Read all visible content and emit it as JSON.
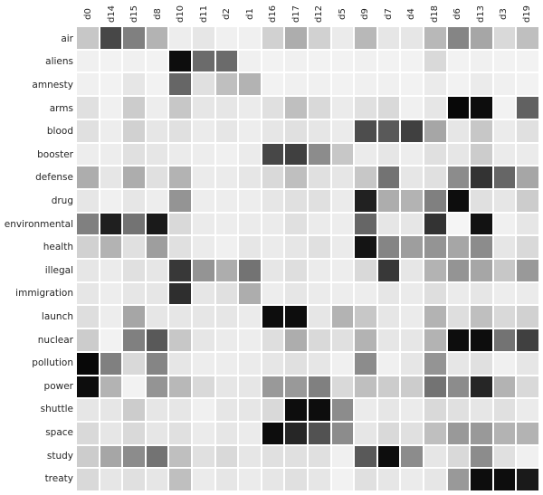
{
  "chart_data": {
    "type": "heatmap",
    "title": "",
    "xlabel": "",
    "ylabel": "",
    "legend": "none",
    "colormap": "white-to-black (Greys)",
    "value_scale": "0 = white/empty, 1 = black/max",
    "grid": "thin white gaps between cells",
    "x_categories": [
      "d0",
      "d14",
      "d15",
      "d8",
      "d10",
      "d11",
      "d2",
      "d1",
      "d16",
      "d17",
      "d12",
      "d5",
      "d9",
      "d7",
      "d4",
      "d18",
      "d6",
      "d13",
      "d3",
      "d19"
    ],
    "y_categories": [
      "air",
      "aliens",
      "amnesty",
      "arms",
      "blood",
      "booster",
      "defense",
      "drug",
      "environmental",
      "health",
      "illegal",
      "immigration",
      "launch",
      "nuclear",
      "pollution",
      "power",
      "shuttle",
      "space",
      "study",
      "treaty"
    ],
    "values": [
      [
        0.22,
        0.72,
        0.5,
        0.3,
        0.07,
        0.1,
        0.06,
        0.06,
        0.18,
        0.32,
        0.18,
        0.08,
        0.28,
        0.1,
        0.1,
        0.28,
        0.48,
        0.35,
        0.15,
        0.25
      ],
      [
        0.06,
        0.05,
        0.06,
        0.05,
        0.95,
        0.58,
        0.58,
        0.06,
        0.05,
        0.06,
        0.05,
        0.05,
        0.06,
        0.05,
        0.05,
        0.15,
        0.05,
        0.06,
        0.05,
        0.05
      ],
      [
        0.06,
        0.05,
        0.1,
        0.05,
        0.6,
        0.12,
        0.25,
        0.3,
        0.05,
        0.06,
        0.06,
        0.05,
        0.06,
        0.06,
        0.05,
        0.08,
        0.05,
        0.08,
        0.06,
        0.05
      ],
      [
        0.12,
        0.06,
        0.2,
        0.07,
        0.22,
        0.1,
        0.1,
        0.08,
        0.12,
        0.25,
        0.15,
        0.08,
        0.12,
        0.15,
        0.06,
        0.1,
        0.97,
        0.95,
        0.05,
        0.62
      ],
      [
        0.12,
        0.07,
        0.18,
        0.1,
        0.12,
        0.08,
        0.1,
        0.07,
        0.1,
        0.12,
        0.1,
        0.08,
        0.7,
        0.65,
        0.75,
        0.35,
        0.1,
        0.22,
        0.08,
        0.12
      ],
      [
        0.07,
        0.07,
        0.12,
        0.1,
        0.08,
        0.07,
        0.06,
        0.08,
        0.72,
        0.75,
        0.45,
        0.22,
        0.08,
        0.1,
        0.07,
        0.12,
        0.1,
        0.2,
        0.08,
        0.08
      ],
      [
        0.32,
        0.1,
        0.32,
        0.12,
        0.3,
        0.08,
        0.08,
        0.1,
        0.15,
        0.25,
        0.12,
        0.1,
        0.22,
        0.55,
        0.1,
        0.12,
        0.45,
        0.8,
        0.6,
        0.35
      ],
      [
        0.1,
        0.06,
        0.1,
        0.07,
        0.42,
        0.07,
        0.07,
        0.07,
        0.1,
        0.12,
        0.12,
        0.08,
        0.87,
        0.32,
        0.3,
        0.5,
        0.95,
        0.12,
        0.1,
        0.2
      ],
      [
        0.5,
        0.88,
        0.55,
        0.9,
        0.15,
        0.08,
        0.07,
        0.08,
        0.08,
        0.12,
        0.08,
        0.07,
        0.6,
        0.1,
        0.1,
        0.8,
        0.04,
        0.93,
        0.06,
        0.1
      ],
      [
        0.18,
        0.3,
        0.12,
        0.38,
        0.12,
        0.08,
        0.06,
        0.1,
        0.08,
        0.1,
        0.12,
        0.08,
        0.92,
        0.48,
        0.38,
        0.42,
        0.35,
        0.45,
        0.1,
        0.15
      ],
      [
        0.1,
        0.08,
        0.12,
        0.1,
        0.78,
        0.42,
        0.32,
        0.55,
        0.1,
        0.13,
        0.08,
        0.07,
        0.15,
        0.78,
        0.1,
        0.3,
        0.42,
        0.35,
        0.22,
        0.4
      ],
      [
        0.1,
        0.07,
        0.1,
        0.1,
        0.82,
        0.1,
        0.12,
        0.32,
        0.07,
        0.1,
        0.08,
        0.07,
        0.07,
        0.1,
        0.08,
        0.13,
        0.08,
        0.1,
        0.07,
        0.08
      ],
      [
        0.13,
        0.07,
        0.35,
        0.1,
        0.1,
        0.1,
        0.1,
        0.08,
        0.95,
        0.95,
        0.1,
        0.3,
        0.22,
        0.1,
        0.08,
        0.3,
        0.13,
        0.25,
        0.15,
        0.18
      ],
      [
        0.2,
        0.05,
        0.5,
        0.65,
        0.22,
        0.1,
        0.08,
        0.07,
        0.13,
        0.32,
        0.15,
        0.12,
        0.3,
        0.1,
        0.1,
        0.3,
        0.95,
        0.95,
        0.55,
        0.75
      ],
      [
        0.97,
        0.5,
        0.15,
        0.48,
        0.1,
        0.07,
        0.07,
        0.08,
        0.1,
        0.12,
        0.1,
        0.06,
        0.45,
        0.06,
        0.1,
        0.42,
        0.1,
        0.12,
        0.06,
        0.1
      ],
      [
        0.95,
        0.3,
        0.05,
        0.42,
        0.28,
        0.15,
        0.1,
        0.1,
        0.4,
        0.4,
        0.5,
        0.15,
        0.25,
        0.2,
        0.2,
        0.55,
        0.45,
        0.85,
        0.3,
        0.15
      ],
      [
        0.1,
        0.1,
        0.2,
        0.1,
        0.1,
        0.06,
        0.1,
        0.1,
        0.15,
        0.95,
        0.95,
        0.45,
        0.08,
        0.1,
        0.08,
        0.15,
        0.12,
        0.1,
        0.12,
        0.08
      ],
      [
        0.15,
        0.1,
        0.15,
        0.1,
        0.12,
        0.08,
        0.1,
        0.08,
        0.95,
        0.85,
        0.68,
        0.45,
        0.1,
        0.15,
        0.12,
        0.25,
        0.4,
        0.4,
        0.3,
        0.3
      ],
      [
        0.2,
        0.35,
        0.45,
        0.55,
        0.25,
        0.12,
        0.15,
        0.1,
        0.12,
        0.12,
        0.12,
        0.06,
        0.65,
        0.95,
        0.45,
        0.1,
        0.15,
        0.45,
        0.12,
        0.06
      ],
      [
        0.15,
        0.1,
        0.12,
        0.1,
        0.25,
        0.08,
        0.1,
        0.08,
        0.1,
        0.12,
        0.1,
        0.05,
        0.12,
        0.1,
        0.08,
        0.1,
        0.4,
        0.95,
        0.95,
        0.9
      ]
    ]
  }
}
